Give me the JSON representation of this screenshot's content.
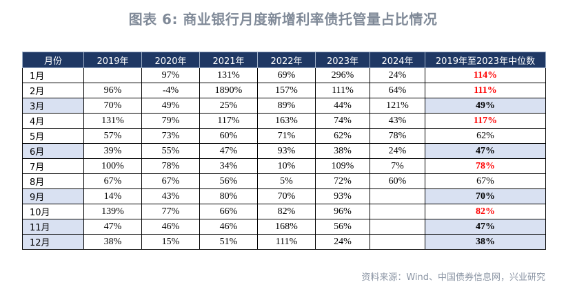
{
  "title": "图表 6:  商业银行月度新增利率债托管量占比情况",
  "table": {
    "headers": [
      "月份",
      "2019年",
      "2020年",
      "2021年",
      "2022年",
      "2023年",
      "2024年",
      "2019年至2023年中位数"
    ],
    "rows": [
      {
        "month": "1月",
        "values": [
          "",
          "97%",
          "131%",
          "69%",
          "296%",
          "24%"
        ],
        "median": "114%",
        "median_color": "red",
        "highlight": false
      },
      {
        "month": "2月",
        "values": [
          "96%",
          "-4%",
          "1890%",
          "157%",
          "111%",
          "64%"
        ],
        "median": "111%",
        "median_color": "red",
        "highlight": false
      },
      {
        "month": "3月",
        "values": [
          "70%",
          "49%",
          "25%",
          "89%",
          "44%",
          "121%"
        ],
        "median": "49%",
        "median_color": "black",
        "highlight": true
      },
      {
        "month": "4月",
        "values": [
          "131%",
          "79%",
          "117%",
          "163%",
          "74%",
          "43%"
        ],
        "median": "117%",
        "median_color": "red",
        "highlight": false
      },
      {
        "month": "5月",
        "values": [
          "57%",
          "73%",
          "60%",
          "71%",
          "62%",
          "78%"
        ],
        "median": "62%",
        "median_color": "normal",
        "highlight": false
      },
      {
        "month": "6月",
        "values": [
          "39%",
          "55%",
          "47%",
          "93%",
          "38%",
          "24%"
        ],
        "median": "47%",
        "median_color": "black",
        "highlight": true
      },
      {
        "month": "7月",
        "values": [
          "100%",
          "78%",
          "34%",
          "10%",
          "109%",
          "7%"
        ],
        "median": "78%",
        "median_color": "red",
        "highlight": false
      },
      {
        "month": "8月",
        "values": [
          "67%",
          "67%",
          "56%",
          "5%",
          "72%",
          "60%"
        ],
        "median": "67%",
        "median_color": "normal",
        "highlight": false
      },
      {
        "month": "9月",
        "values": [
          "14%",
          "43%",
          "80%",
          "70%",
          "93%",
          ""
        ],
        "median": "70%",
        "median_color": "black",
        "highlight": true
      },
      {
        "month": "10月",
        "values": [
          "139%",
          "77%",
          "66%",
          "82%",
          "96%",
          ""
        ],
        "median": "82%",
        "median_color": "red",
        "highlight": false
      },
      {
        "month": "11月",
        "values": [
          "47%",
          "46%",
          "46%",
          "168%",
          "56%",
          ""
        ],
        "median": "47%",
        "median_color": "black",
        "highlight": true
      },
      {
        "month": "12月",
        "values": [
          "38%",
          "15%",
          "51%",
          "111%",
          "24%",
          ""
        ],
        "median": "38%",
        "median_color": "black",
        "highlight": true
      }
    ]
  },
  "source": "资料来源：Wind、中国债券信息网，兴业研究"
}
